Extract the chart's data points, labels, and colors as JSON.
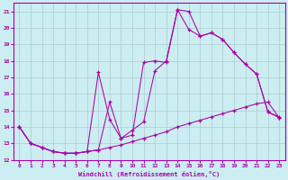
{
  "xlabel": "Windchill (Refroidissement éolien,°C)",
  "bg_color": "#cceef2",
  "grid_color": "#aacccc",
  "line_color": "#aa00aa",
  "xlim": [
    -0.5,
    23.5
  ],
  "ylim": [
    12,
    21.5
  ],
  "xticks": [
    0,
    1,
    2,
    3,
    4,
    5,
    6,
    7,
    8,
    9,
    10,
    11,
    12,
    13,
    14,
    15,
    16,
    17,
    18,
    19,
    20,
    21,
    22,
    23
  ],
  "yticks": [
    12,
    13,
    14,
    15,
    16,
    17,
    18,
    19,
    20,
    21
  ],
  "curve1_x": [
    0,
    1,
    2,
    3,
    4,
    5,
    6,
    7,
    8,
    9,
    10,
    11,
    12,
    13,
    14,
    15,
    16,
    17,
    18,
    19,
    20,
    21,
    22,
    23
  ],
  "curve1_y": [
    14.0,
    13.0,
    12.75,
    12.5,
    12.4,
    12.4,
    12.5,
    12.6,
    12.75,
    12.9,
    13.1,
    13.3,
    13.5,
    13.7,
    14.0,
    14.2,
    14.4,
    14.6,
    14.8,
    15.0,
    15.2,
    15.4,
    15.5,
    14.55
  ],
  "curve2_x": [
    0,
    1,
    2,
    3,
    4,
    5,
    6,
    7,
    8,
    9,
    10,
    11,
    12,
    13,
    14,
    15,
    16,
    17,
    18,
    19,
    20,
    21,
    22,
    23
  ],
  "curve2_y": [
    14.0,
    13.0,
    12.75,
    12.5,
    12.4,
    12.4,
    12.5,
    12.6,
    15.5,
    13.3,
    13.5,
    17.9,
    18.0,
    17.9,
    21.1,
    21.0,
    19.5,
    19.7,
    19.3,
    18.5,
    17.8,
    17.2,
    14.9,
    14.6
  ],
  "curve3_x": [
    0,
    1,
    2,
    3,
    4,
    5,
    6,
    7,
    8,
    9,
    10,
    11,
    12,
    13,
    14,
    15,
    16,
    17,
    18,
    19,
    20,
    21,
    22,
    23
  ],
  "curve3_y": [
    14.0,
    13.0,
    12.75,
    12.5,
    12.4,
    12.4,
    12.5,
    17.3,
    14.45,
    13.3,
    13.8,
    14.3,
    17.4,
    18.0,
    21.1,
    19.9,
    19.5,
    19.7,
    19.3,
    18.5,
    17.8,
    17.2,
    14.9,
    14.55
  ]
}
